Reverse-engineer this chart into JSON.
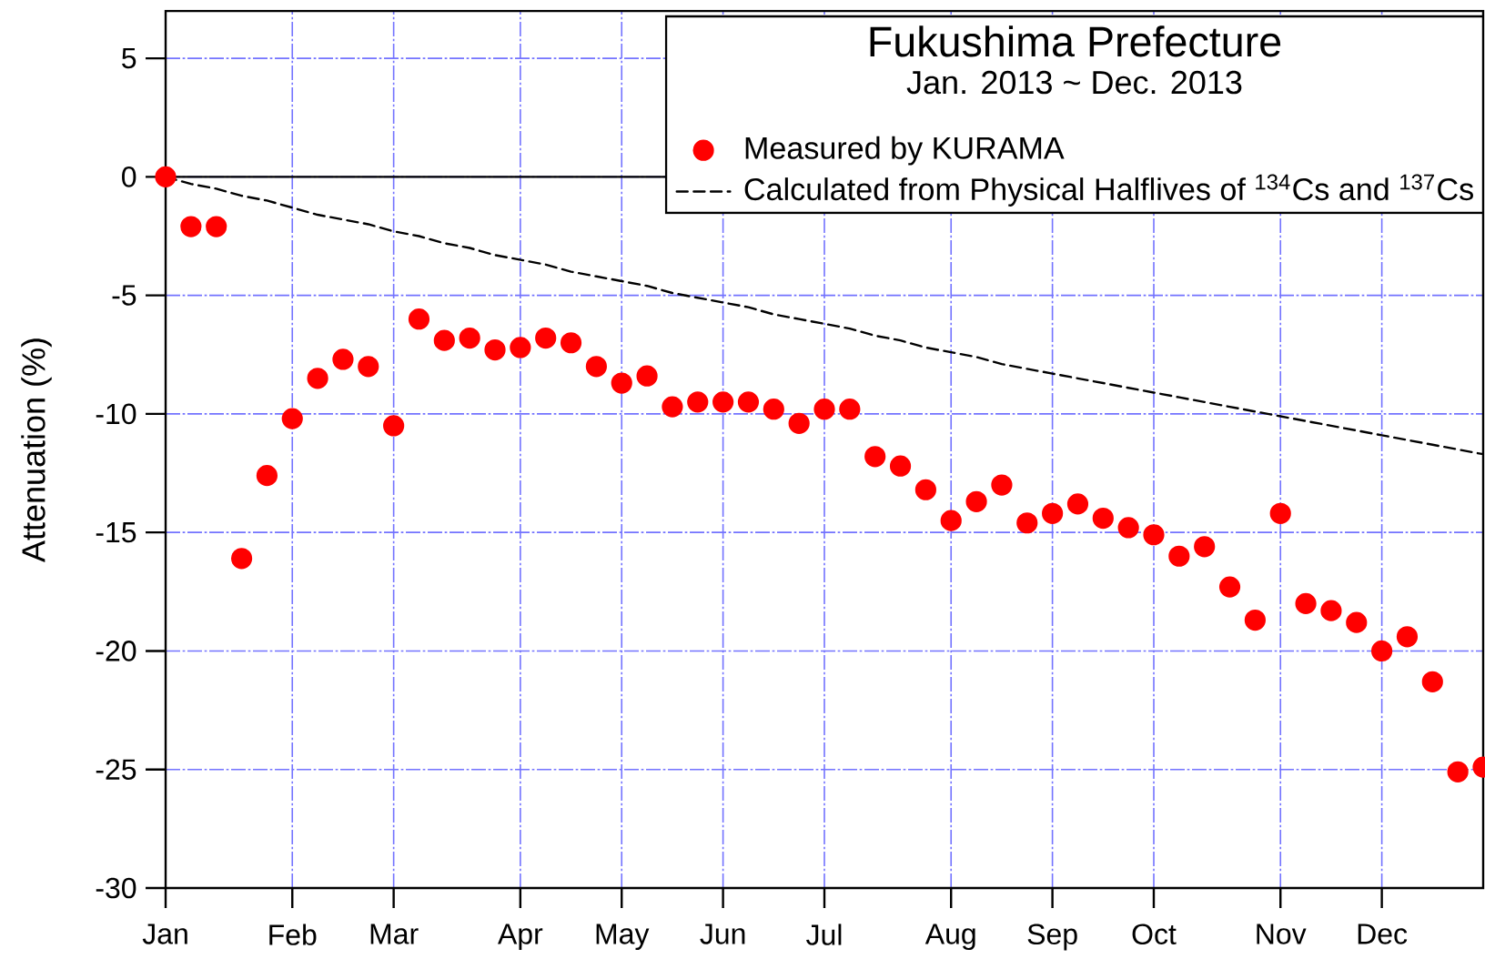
{
  "chart_data": {
    "type": "scatter",
    "title": "Fukushima Prefecture",
    "subtitle": "Jan. 2013 ~ Dec. 2013",
    "ylabel": "Attenuation (%)",
    "categories": [
      "Jan",
      null,
      null,
      null,
      null,
      "Feb",
      null,
      null,
      null,
      "Mar",
      null,
      null,
      null,
      null,
      "Apr",
      null,
      null,
      null,
      "May",
      null,
      null,
      null,
      "Jun",
      null,
      null,
      null,
      "Jul",
      null,
      null,
      null,
      null,
      "Aug",
      null,
      null,
      null,
      "Sep",
      null,
      null,
      null,
      "Oct",
      null,
      null,
      null,
      null,
      "Nov",
      null,
      null,
      null,
      "Dec",
      null,
      null,
      null,
      null
    ],
    "series": [
      {
        "name": "Measured by KURAMA",
        "color": "#ff0000",
        "marker": "circle",
        "values": [
          0,
          -2.1,
          -2.1,
          -16.1,
          -12.6,
          -10.2,
          -8.5,
          -7.7,
          -8.0,
          -10.5,
          -6.0,
          -6.9,
          -6.8,
          -7.3,
          -7.2,
          -6.8,
          -7.0,
          -8.0,
          -8.7,
          -8.4,
          -9.7,
          -9.5,
          -9.5,
          -9.5,
          -9.8,
          -10.4,
          -9.8,
          -9.8,
          -11.8,
          -12.2,
          -13.2,
          -14.5,
          -13.7,
          -13.0,
          -14.6,
          -14.2,
          -13.8,
          -14.4,
          -14.8,
          -15.1,
          -16.0,
          -15.6,
          -17.3,
          -18.7,
          -14.2,
          -18.0,
          -18.3,
          -18.8,
          -20.0,
          -19.4,
          -21.3,
          -25.1,
          -24.9
        ]
      },
      {
        "name": "Calculated from Physical Halflives of $^{134}$Cs and $^{137}$Cs",
        "type": "line",
        "color": "#000000",
        "marker": "none",
        "line_style": "dashed",
        "values": [
          0,
          -0.3,
          -0.5,
          -0.8,
          -1.0,
          -1.3,
          -1.6,
          -1.8,
          -2.0,
          -2.3,
          -2.5,
          -2.8,
          -3.0,
          -3.3,
          -3.5,
          -3.7,
          -4.0,
          -4.2,
          -4.4,
          -4.6,
          -4.9,
          -5.1,
          -5.3,
          -5.5,
          -5.8,
          -6.0,
          -6.2,
          -6.4,
          -6.7,
          -6.9,
          -7.2,
          -7.4,
          -7.6,
          -7.9,
          -8.1,
          -8.3,
          -8.5,
          -8.7,
          -8.9,
          -9.1,
          -9.3,
          -9.5,
          -9.7,
          -9.9,
          -10.1,
          -10.3,
          -10.5,
          -10.7,
          -10.9,
          -11.1,
          -11.3,
          -11.5,
          -11.7
        ]
      }
    ],
    "ylim": [
      -30,
      7
    ],
    "yticks": [
      -30,
      -25,
      -20,
      -15,
      -10,
      -5,
      0,
      5
    ],
    "grid": true,
    "legend": "top right",
    "ref_lines": [
      {
        "axis": "y",
        "value": 0,
        "color": "#000000"
      }
    ]
  }
}
